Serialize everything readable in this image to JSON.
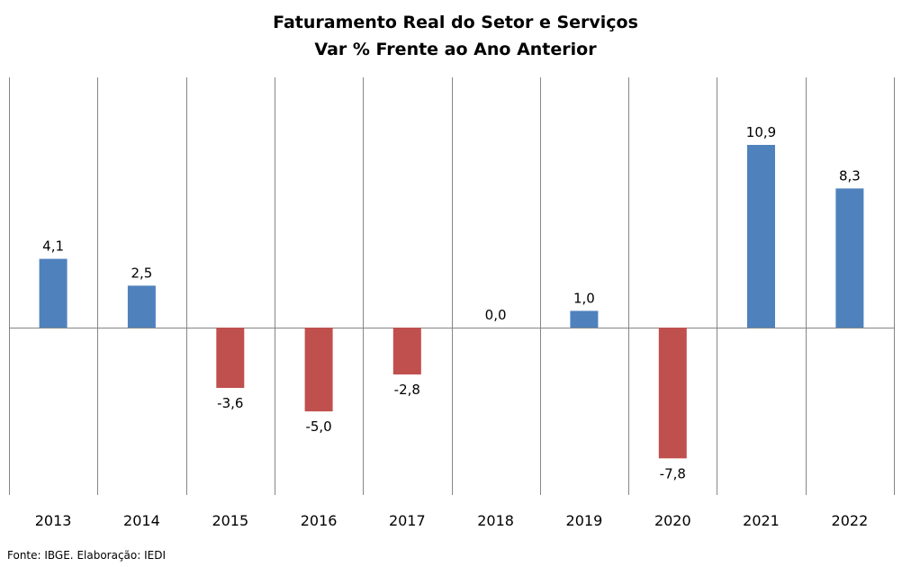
{
  "chart_data": {
    "type": "bar",
    "title": "Faturamento Real do Setor e Serviços",
    "subtitle": "Var % Frente ao Ano Anterior",
    "categories": [
      "2013",
      "2014",
      "2015",
      "2016",
      "2017",
      "2018",
      "2019",
      "2020",
      "2021",
      "2022"
    ],
    "values": [
      4.1,
      2.5,
      -3.6,
      -5.0,
      -2.8,
      0.0,
      1.0,
      -7.8,
      10.9,
      8.3
    ],
    "data_labels": [
      "4,1",
      "2,5",
      "-3,6",
      "-5,0",
      "-2,8",
      "0,0",
      "1,0",
      "-7,8",
      "10,9",
      "8,3"
    ],
    "xlabel": "",
    "ylabel": "",
    "ylim": [
      -10,
      15
    ],
    "grid": "vertical",
    "legend": "none",
    "colors": {
      "positive": "#4F81BD",
      "negative": "#C0504D",
      "axis": "#868686",
      "gridline": "#868686"
    }
  },
  "source": "Fonte: IBGE. Elaboração: IEDI"
}
